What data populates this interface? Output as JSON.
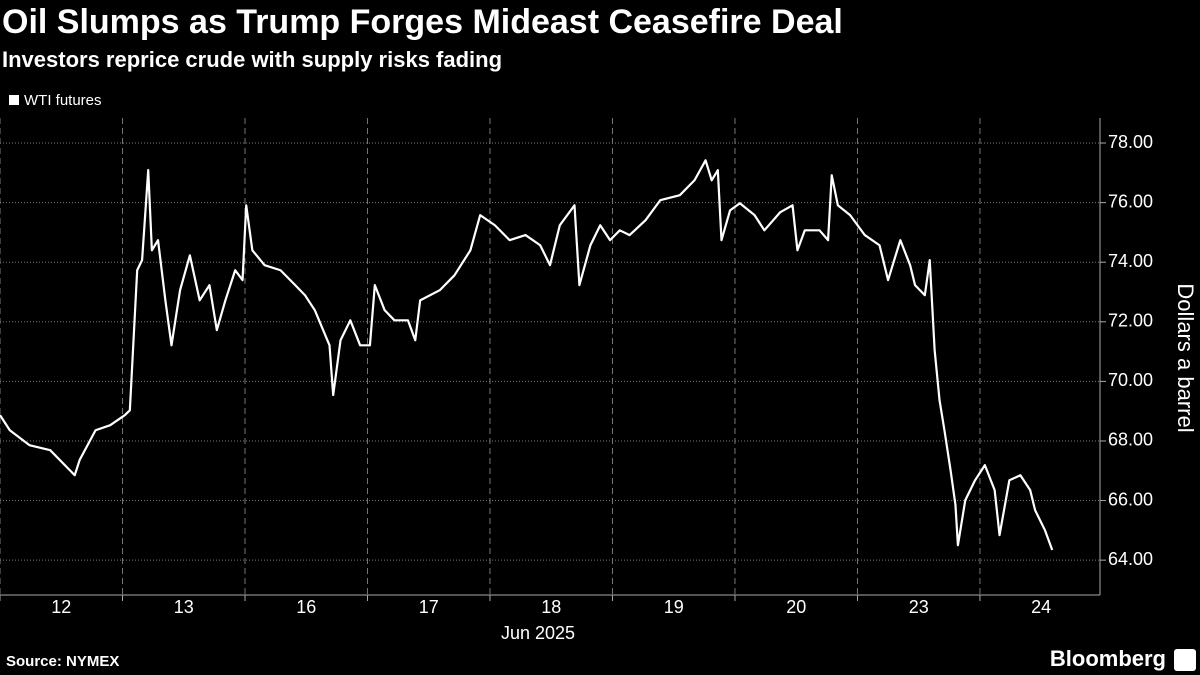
{
  "chart_data": {
    "type": "line",
    "title": "Oil Slumps as Trump Forges Mideast Ceasefire Deal",
    "subtitle": "Investors reprice crude with supply risks fading",
    "x_label": "Jun 2025",
    "y_label": "Dollars a barrel",
    "source": "Source: NYMEX",
    "brand": "Bloomberg",
    "x": [
      0,
      0.08,
      0.24,
      0.41,
      0.61,
      0.65,
      0.78,
      0.9,
      1.02,
      1.06,
      1.12,
      1.16,
      1.21,
      1.24,
      1.29,
      1.35,
      1.4,
      1.47,
      1.55,
      1.63,
      1.71,
      1.77,
      1.84,
      1.92,
      1.98,
      2.01,
      2.06,
      2.16,
      2.29,
      2.41,
      2.49,
      2.57,
      2.69,
      2.72,
      2.78,
      2.86,
      2.94,
      3.02,
      3.06,
      3.14,
      3.22,
      3.33,
      3.39,
      3.43,
      3.59,
      3.71,
      3.84,
      3.92,
      4.04,
      4.16,
      4.29,
      4.41,
      4.49,
      4.57,
      4.69,
      4.73,
      4.82,
      4.9,
      4.98,
      5.06,
      5.14,
      5.27,
      5.39,
      5.55,
      5.67,
      5.76,
      5.81,
      5.86,
      5.89,
      5.96,
      6.04,
      6.16,
      6.24,
      6.37,
      6.47,
      6.51,
      6.57,
      6.69,
      6.76,
      6.79,
      6.84,
      6.94,
      7.06,
      7.18,
      7.25,
      7.35,
      7.43,
      7.47,
      7.55,
      7.59,
      7.63,
      7.67,
      7.71,
      7.76,
      7.8,
      7.82,
      7.88,
      7.96,
      8.04,
      8.12,
      8.16,
      8.24,
      8.33,
      8.41,
      8.45,
      8.53,
      8.59
    ],
    "series": [
      {
        "name": "WTI futures",
        "color": "#ffffff",
        "values": [
          68.87,
          68.36,
          67.86,
          67.69,
          66.85,
          67.36,
          68.36,
          68.53,
          68.87,
          69.03,
          73.73,
          74.07,
          77.09,
          74.4,
          74.74,
          72.72,
          71.21,
          73.06,
          74.23,
          72.72,
          73.23,
          71.72,
          72.72,
          73.73,
          73.4,
          75.91,
          74.4,
          73.9,
          73.73,
          73.23,
          72.89,
          72.39,
          71.21,
          69.54,
          71.38,
          72.05,
          71.21,
          71.21,
          73.23,
          72.39,
          72.05,
          72.05,
          71.38,
          72.72,
          73.06,
          73.56,
          74.4,
          75.58,
          75.24,
          74.74,
          74.91,
          74.57,
          73.9,
          75.24,
          75.91,
          73.23,
          74.57,
          75.24,
          74.74,
          75.07,
          74.91,
          75.41,
          76.08,
          76.25,
          76.75,
          77.42,
          76.75,
          77.09,
          74.74,
          75.74,
          75.98,
          75.58,
          75.07,
          75.68,
          75.91,
          74.4,
          75.07,
          75.07,
          74.74,
          76.92,
          75.91,
          75.58,
          74.91,
          74.57,
          73.4,
          74.74,
          73.9,
          73.23,
          72.89,
          74.07,
          71.05,
          69.37,
          68.36,
          67.02,
          65.85,
          64.5,
          66.01,
          66.68,
          67.19,
          66.35,
          64.84,
          66.68,
          66.85,
          66.35,
          65.68,
          65.01,
          64.34
        ]
      }
    ],
    "xlim": [
      0,
      8.98
    ],
    "xticks": [
      {
        "value": 0.5,
        "label": "12"
      },
      {
        "value": 1.5,
        "label": "13"
      },
      {
        "value": 2.5,
        "label": "16"
      },
      {
        "value": 3.5,
        "label": "17"
      },
      {
        "value": 4.5,
        "label": "18"
      },
      {
        "value": 5.5,
        "label": "19"
      },
      {
        "value": 6.5,
        "label": "20"
      },
      {
        "value": 7.5,
        "label": "23"
      },
      {
        "value": 8.5,
        "label": "24"
      }
    ],
    "ylim": [
      62.83,
      78.84
    ],
    "yticks": [
      {
        "value": 64,
        "label": "64.00"
      },
      {
        "value": 66,
        "label": "66.00"
      },
      {
        "value": 68,
        "label": "68.00"
      },
      {
        "value": 70,
        "label": "70.00"
      },
      {
        "value": 72,
        "label": "72.00"
      },
      {
        "value": 74,
        "label": "74.00"
      },
      {
        "value": 76,
        "label": "76.00"
      },
      {
        "value": 78,
        "label": "78.00"
      }
    ],
    "grid": true
  }
}
